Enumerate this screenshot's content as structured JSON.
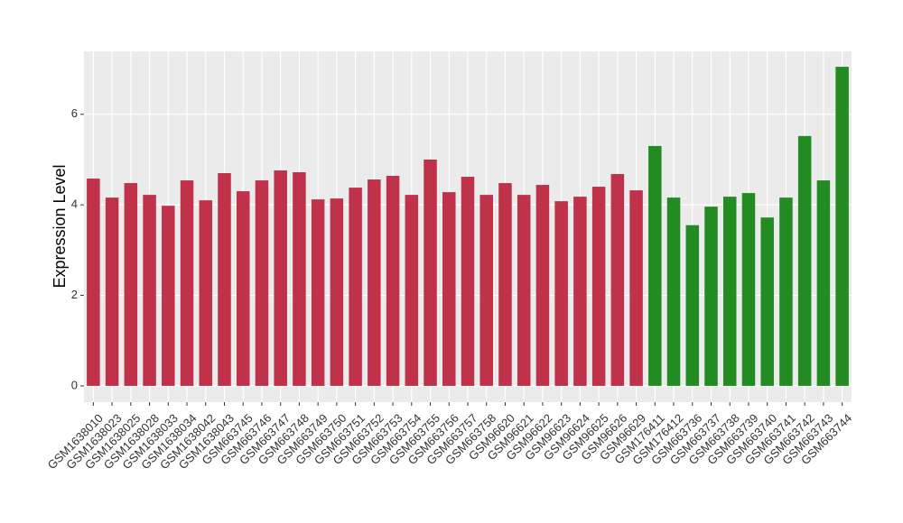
{
  "chart_data": {
    "type": "bar",
    "y_label": "Expression Level",
    "categories": [
      "GSM1638010",
      "GSM1638023",
      "GSM1638025",
      "GSM1638028",
      "GSM1638033",
      "GSM1638034",
      "GSM1638042",
      "GSM1638043",
      "GSM663745",
      "GSM663746",
      "GSM663747",
      "GSM663748",
      "GSM663749",
      "GSM663750",
      "GSM663751",
      "GSM663752",
      "GSM663753",
      "GSM663754",
      "GSM663755",
      "GSM663756",
      "GSM663757",
      "GSM663758",
      "GSM96620",
      "GSM96621",
      "GSM96622",
      "GSM96623",
      "GSM96624",
      "GSM96625",
      "GSM96626",
      "GSM96629",
      "GSM176411",
      "GSM176412",
      "GSM663736",
      "GSM663737",
      "GSM663738",
      "GSM663739",
      "GSM663740",
      "GSM663741",
      "GSM663742",
      "GSM663743",
      "GSM663744"
    ],
    "values": [
      4.58,
      4.16,
      4.48,
      4.22,
      3.98,
      4.54,
      4.1,
      4.7,
      4.3,
      4.54,
      4.76,
      4.72,
      4.12,
      4.14,
      4.38,
      4.56,
      4.64,
      4.22,
      5.0,
      4.28,
      4.62,
      4.22,
      4.48,
      4.22,
      4.44,
      4.08,
      4.18,
      4.4,
      4.68,
      4.32,
      5.3,
      4.16,
      3.55,
      3.96,
      4.18,
      4.26,
      3.72,
      4.16,
      5.52,
      4.54,
      7.05
    ],
    "colors": [
      "#c0314a",
      "#c0314a",
      "#c0314a",
      "#c0314a",
      "#c0314a",
      "#c0314a",
      "#c0314a",
      "#c0314a",
      "#c0314a",
      "#c0314a",
      "#c0314a",
      "#c0314a",
      "#c0314a",
      "#c0314a",
      "#c0314a",
      "#c0314a",
      "#c0314a",
      "#c0314a",
      "#c0314a",
      "#c0314a",
      "#c0314a",
      "#c0314a",
      "#c0314a",
      "#c0314a",
      "#c0314a",
      "#c0314a",
      "#c0314a",
      "#c0314a",
      "#c0314a",
      "#c0314a",
      "#228b22",
      "#228b22",
      "#228b22",
      "#228b22",
      "#228b22",
      "#228b22",
      "#228b22",
      "#228b22",
      "#228b22",
      "#228b22",
      "#228b22"
    ],
    "ylim": [
      -0.36,
      7.39
    ],
    "yticks": [
      0,
      2,
      4,
      6
    ],
    "grid": true
  }
}
